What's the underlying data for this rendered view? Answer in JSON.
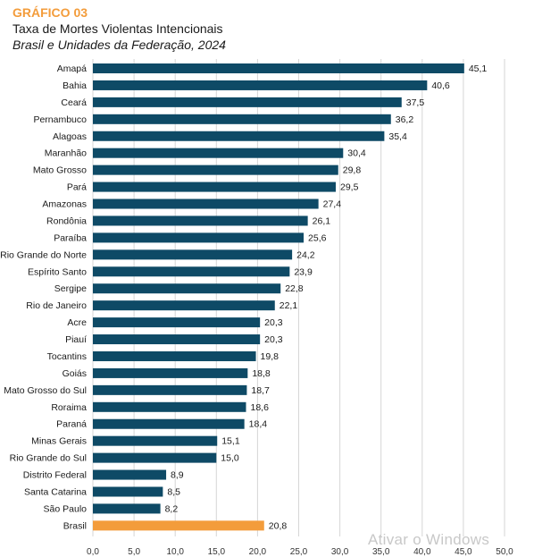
{
  "header": {
    "kicker": "GRÁFICO 03",
    "title": "Taxa de Mortes Violentas Intencionais",
    "subtitle": "Brasil e Unidades da Federação, 2024"
  },
  "watermark": "Ativar o Windows",
  "colors": {
    "bar": "#0e4a66",
    "highlight": "#f39c3b",
    "kicker": "#f39c3b",
    "grid": "#d6d6d6"
  },
  "chart_data": {
    "type": "bar",
    "orientation": "horizontal",
    "categories": [
      "Amapá",
      "Bahia",
      "Ceará",
      "Pernambuco",
      "Alagoas",
      "Maranhão",
      "Mato Grosso",
      "Pará",
      "Amazonas",
      "Rondônia",
      "Paraíba",
      "Rio Grande do Norte",
      "Espírito Santo",
      "Sergipe",
      "Rio de Janeiro",
      "Acre",
      "Piauí",
      "Tocantins",
      "Goiás",
      "Mato Grosso do Sul",
      "Roraima",
      "Paraná",
      "Minas Gerais",
      "Rio Grande do Sul",
      "Distrito Federal",
      "Santa Catarina",
      "São Paulo",
      "Brasil"
    ],
    "values": [
      45.1,
      40.6,
      37.5,
      36.2,
      35.4,
      30.4,
      29.8,
      29.5,
      27.4,
      26.1,
      25.6,
      24.2,
      23.9,
      22.8,
      22.1,
      20.3,
      20.3,
      19.8,
      18.8,
      18.7,
      18.6,
      18.4,
      15.1,
      15.0,
      8.9,
      8.5,
      8.2,
      20.8
    ],
    "value_labels": [
      "45,1",
      "40,6",
      "37,5",
      "36,2",
      "35,4",
      "30,4",
      "29,8",
      "29,5",
      "27,4",
      "26,1",
      "25,6",
      "24,2",
      "23,9",
      "22,8",
      "22,1",
      "20,3",
      "20,3",
      "19,8",
      "18,8",
      "18,7",
      "18,6",
      "18,4",
      "15,1",
      "15,0",
      "8,9",
      "8,5",
      "8,2",
      "20,8"
    ],
    "highlight": "Brasil",
    "xlim": [
      0,
      50
    ],
    "xticks": [
      0,
      5,
      10,
      15,
      20,
      25,
      30,
      35,
      40,
      45,
      50
    ],
    "xtick_labels": [
      "0,0",
      "5,0",
      "10,0",
      "15,0",
      "20,0",
      "25,0",
      "30,0",
      "35,0",
      "40,0",
      "45,0",
      "50,0"
    ],
    "grid": true
  }
}
